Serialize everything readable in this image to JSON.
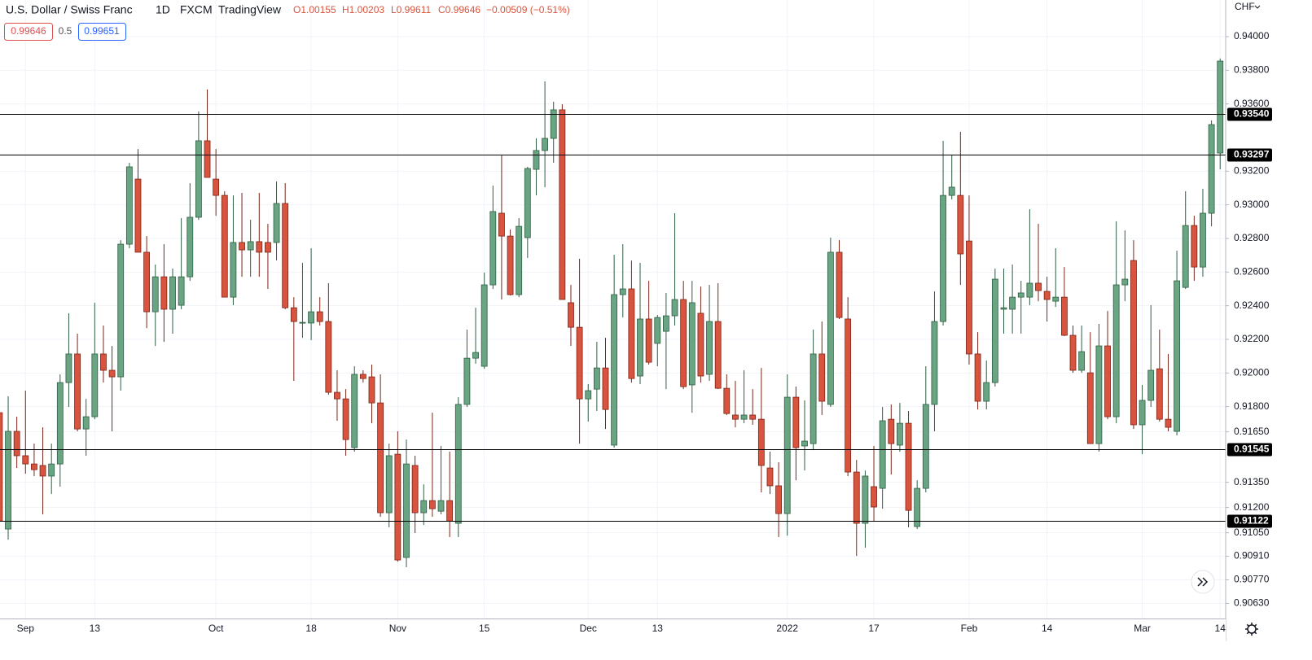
{
  "header": {
    "symbol": "U.S. Dollar / Swiss Franc",
    "interval": "1D",
    "source": "FXCM",
    "platform": "TradingView",
    "ohlc": [
      "O1.00155",
      "H1.00203",
      "L0.99611",
      "C0.99646"
    ],
    "change": "−0.00509 (−0.51%)",
    "bid": "0.99646",
    "spread": "0.5",
    "ask": "0.99651"
  },
  "chart_data": {
    "type": "candlestick",
    "y_label": "CHF",
    "grid": true,
    "up_color": "#6aa583",
    "down_color": "#d9543e",
    "up_border": "#2e5e43",
    "down_border": "#7a2417",
    "ylim": [
      0.9054,
      0.94218
    ],
    "yticks": [
      {
        "value": 0.94,
        "label": "0.94000"
      },
      {
        "value": 0.938,
        "label": "0.93800"
      },
      {
        "value": 0.936,
        "label": "0.93600"
      },
      {
        "value": 0.932,
        "label": "0.93200"
      },
      {
        "value": 0.93,
        "label": "0.93000"
      },
      {
        "value": 0.928,
        "label": "0.92800"
      },
      {
        "value": 0.926,
        "label": "0.92600"
      },
      {
        "value": 0.924,
        "label": "0.92400"
      },
      {
        "value": 0.922,
        "label": "0.92200"
      },
      {
        "value": 0.92,
        "label": "0.92000"
      },
      {
        "value": 0.918,
        "label": "0.91800"
      },
      {
        "value": 0.9165,
        "label": "0.91650"
      },
      {
        "value": 0.9135,
        "label": "0.91350"
      },
      {
        "value": 0.912,
        "label": "0.91200"
      },
      {
        "value": 0.9105,
        "label": "0.91050"
      },
      {
        "value": 0.9091,
        "label": "0.90910"
      },
      {
        "value": 0.9077,
        "label": "0.90770"
      },
      {
        "value": 0.9063,
        "label": "0.90630"
      }
    ],
    "hlines": [
      {
        "value": 0.9354,
        "label": "0.93540"
      },
      {
        "value": 0.93297,
        "label": "0.93297"
      },
      {
        "value": 0.91545,
        "label": "0.91545"
      },
      {
        "value": 0.91122,
        "label": "0.91122"
      }
    ],
    "categories": [
      null,
      null,
      null,
      "Sep",
      null,
      null,
      null,
      null,
      null,
      null,
      null,
      "13",
      null,
      null,
      null,
      null,
      null,
      null,
      null,
      null,
      null,
      null,
      null,
      null,
      null,
      "Oct",
      null,
      null,
      null,
      null,
      null,
      null,
      null,
      null,
      null,
      null,
      "18",
      null,
      null,
      null,
      null,
      null,
      null,
      null,
      null,
      null,
      "Nov",
      null,
      null,
      null,
      null,
      null,
      null,
      null,
      null,
      null,
      "15",
      null,
      null,
      null,
      null,
      null,
      null,
      null,
      null,
      null,
      null,
      null,
      "Dec",
      null,
      null,
      null,
      null,
      null,
      null,
      null,
      "13",
      null,
      null,
      null,
      null,
      null,
      null,
      null,
      null,
      null,
      null,
      null,
      null,
      null,
      null,
      "2022",
      null,
      null,
      null,
      null,
      null,
      null,
      null,
      null,
      null,
      "17",
      null,
      null,
      null,
      null,
      null,
      null,
      null,
      null,
      null,
      null,
      "Feb",
      null,
      null,
      null,
      null,
      null,
      null,
      null,
      null,
      "14",
      null,
      null,
      null,
      null,
      null,
      null,
      null,
      null,
      null,
      null,
      "Mar",
      null,
      null,
      null,
      null,
      null,
      null,
      null,
      null,
      "14"
    ],
    "open": [
      0.91764,
      0.91072,
      0.91653,
      0.91508,
      0.91459,
      0.9145,
      0.91387,
      0.91459,
      0.91943,
      0.92113,
      0.91667,
      0.9174,
      0.92113,
      0.92016,
      0.91977,
      0.92766,
      0.93153,
      0.92718,
      0.92364,
      0.92572,
      0.92379,
      0.92403,
      0.92572,
      0.92926,
      0.93381,
      0.93153,
      0.93056,
      0.92451,
      0.92776,
      0.92732,
      0.92781,
      0.92776,
      0.92776,
      0.93008,
      0.92388,
      0.92297,
      0.92297,
      0.92364,
      0.92306,
      0.91885,
      0.91846,
      0.91556,
      0.91992,
      0.91977,
      0.91822,
      0.91169,
      0.91517,
      0.90903,
      0.9145,
      0.91169,
      0.91241,
      0.91178,
      0.91241,
      0.91106,
      0.91813,
      0.92088,
      0.9204,
      0.92524,
      0.9295,
      0.92814,
      0.92466,
      0.92805,
      0.93211,
      0.93323,
      0.93395,
      0.93565,
      0.92418,
      0.92272,
      0.91846,
      0.91904,
      0.9203,
      0.91571,
      0.92466,
      0.925,
      0.91982,
      0.92321,
      0.92176,
      0.92248,
      0.9234,
      0.92437,
      0.91929,
      0.92355,
      0.91992,
      0.92306,
      0.91909,
      0.9175,
      0.91725,
      0.9175,
      0.91725,
      0.91435,
      0.91329,
      0.91164,
      0.91856,
      0.91566,
      0.9158,
      0.92113,
      0.91813,
      0.92718,
      0.92321,
      0.91411,
      0.91106,
      0.91324,
      0.91314,
      0.91725,
      0.91571,
      0.91701,
      0.91087,
      0.91314,
      0.91813,
      0.92306,
      0.93056,
      0.93056,
      0.92785,
      0.92113,
      0.91832,
      0.91943,
      0.92379,
      0.92379,
      0.92451,
      0.92451,
      0.92534,
      0.92485,
      0.92427,
      0.92451,
      0.92224,
      0.92016,
      0.92001,
      0.9158,
      0.92161,
      0.9174,
      0.92524,
      0.92669,
      0.91692,
      0.91837,
      0.92025,
      0.91725,
      0.91653,
      0.92509,
      0.92877,
      0.9263,
      0.9295,
      0.93308
    ],
    "high": [
      0.91861,
      0.91861,
      0.9174,
      0.91895,
      0.9158,
      0.91677,
      0.9158,
      0.91992,
      0.92355,
      0.92234,
      0.91846,
      0.92418,
      0.92282,
      0.92161,
      0.9279,
      0.9325,
      0.93332,
      0.92814,
      0.92645,
      0.92766,
      0.92621,
      0.92921,
      0.93129,
      0.93555,
      0.93686,
      0.93332,
      0.93081,
      0.93056,
      0.93071,
      0.92911,
      0.93071,
      0.92887,
      0.93139,
      0.93129,
      0.92451,
      0.92655,
      0.92742,
      0.92451,
      0.92534,
      0.92016,
      0.91904,
      0.9204,
      0.92016,
      0.9205,
      0.91992,
      0.9158,
      0.91653,
      0.91604,
      0.91508,
      0.91338,
      0.91764,
      0.91566,
      0.91532,
      0.91856,
      0.92258,
      0.92388,
      0.92597,
      0.93114,
      0.93298,
      0.92853,
      0.92921,
      0.93226,
      0.93395,
      0.93734,
      0.93613,
      0.93598,
      0.92524,
      0.92679,
      0.91934,
      0.92185,
      0.92209,
      0.92703,
      0.92766,
      0.92669,
      0.92655,
      0.92548,
      0.92345,
      0.92476,
      0.9295,
      0.92548,
      0.92548,
      0.92514,
      0.92524,
      0.92534,
      0.91992,
      0.91953,
      0.92016,
      0.91904,
      0.9203,
      0.91532,
      0.91469,
      0.91992,
      0.91919,
      0.91837,
      0.92258,
      0.92306,
      0.92805,
      0.9279,
      0.92451,
      0.91483,
      0.9142,
      0.91566,
      0.91798,
      0.91813,
      0.91822,
      0.91774,
      0.91362,
      0.9204,
      0.92485,
      0.93381,
      0.93298,
      0.93434,
      0.93056,
      0.92243,
      0.92074,
      0.92621,
      0.92621,
      0.92645,
      0.92548,
      0.92974,
      0.92887,
      0.92572,
      0.92742,
      0.9263,
      0.92282,
      0.92282,
      0.92243,
      0.92292,
      0.92369,
      0.92902,
      0.92848,
      0.9279,
      0.91929,
      0.92403,
      0.92258,
      0.92113,
      0.92727,
      0.93081,
      0.92935,
      0.93095,
      0.93502,
      0.9387
    ],
    "low": [
      0.91096,
      0.91009,
      0.91435,
      0.91401,
      0.91387,
      0.91159,
      0.9128,
      0.91324,
      0.91798,
      0.91653,
      0.91508,
      0.91725,
      0.91943,
      0.91653,
      0.91895,
      0.92742,
      0.92718,
      0.92267,
      0.92161,
      0.92185,
      0.92234,
      0.92379,
      0.92548,
      0.92911,
      0.93163,
      0.92935,
      0.92451,
      0.92403,
      0.92572,
      0.92572,
      0.92572,
      0.925,
      0.92669,
      0.92379,
      0.91953,
      0.92209,
      0.92195,
      0.92282,
      0.91871,
      0.91716,
      0.91508,
      0.91532,
      0.91943,
      0.91701,
      0.91145,
      0.91082,
      0.90878,
      0.90845,
      0.91048,
      0.91096,
      0.91145,
      0.91159,
      0.91024,
      0.91024,
      0.91798,
      0.92055,
      0.92025,
      0.925,
      0.92437,
      0.92461,
      0.92451,
      0.92684,
      0.93056,
      0.93105,
      0.9325,
      0.92437,
      0.92161,
      0.9158,
      0.91711,
      0.91774,
      0.91667,
      0.91556,
      0.9233,
      0.91943,
      0.91934,
      0.9205,
      0.9204,
      0.91904,
      0.92282,
      0.91904,
      0.91764,
      0.91943,
      0.91953,
      0.91904,
      0.9175,
      0.91677,
      0.91701,
      0.91692,
      0.9129,
      0.9128,
      0.91024,
      0.91033,
      0.91362,
      0.9142,
      0.91541,
      0.9175,
      0.91798,
      0.92321,
      0.91387,
      0.90912,
      0.90961,
      0.9112,
      0.91193,
      0.91396,
      0.91532,
      0.91082,
      0.91072,
      0.9129,
      0.91653,
      0.92282,
      0.93032,
      0.92524,
      0.9205,
      0.91783,
      0.91783,
      0.91919,
      0.92234,
      0.92234,
      0.92234,
      0.92403,
      0.92427,
      0.92306,
      0.92393,
      0.92219,
      0.92001,
      0.92001,
      0.9158,
      0.91532,
      0.91725,
      0.91701,
      0.92427,
      0.91667,
      0.91517,
      0.91798,
      0.91711,
      0.91653,
      0.91629,
      0.925,
      0.92548,
      0.92572,
      0.92872,
      0.93211
    ],
    "close": [
      0.9112,
      0.91653,
      0.91508,
      0.91459,
      0.91425,
      0.91387,
      0.91459,
      0.91943,
      0.92113,
      0.91667,
      0.9174,
      0.92113,
      0.92016,
      0.91977,
      0.92766,
      0.93226,
      0.92718,
      0.92364,
      0.92572,
      0.92379,
      0.92572,
      0.92572,
      0.92926,
      0.93381,
      0.93163,
      0.93056,
      0.92451,
      0.92776,
      0.92732,
      0.92781,
      0.92718,
      0.92718,
      0.93008,
      0.92388,
      0.92306,
      0.92301,
      0.92364,
      0.92306,
      0.91885,
      0.91846,
      0.91604,
      0.91992,
      0.91967,
      0.91822,
      0.91169,
      0.91508,
      0.90888,
      0.91459,
      0.91169,
      0.91241,
      0.91193,
      0.91241,
      0.9112,
      0.91813,
      0.92088,
      0.92122,
      0.92524,
      0.9296,
      0.92814,
      0.92466,
      0.92872,
      0.93216,
      0.93323,
      0.93395,
      0.93565,
      0.92437,
      0.92272,
      0.91846,
      0.91895,
      0.9203,
      0.91783,
      0.92466,
      0.925,
      0.91967,
      0.92321,
      0.92064,
      0.9233,
      0.9234,
      0.92437,
      0.91919,
      0.92418,
      0.91982,
      0.92306,
      0.91909,
      0.91759,
      0.91725,
      0.9175,
      0.91725,
      0.9145,
      0.91329,
      0.91164,
      0.91856,
      0.91556,
      0.91595,
      0.92113,
      0.91832,
      0.92718,
      0.9233,
      0.91411,
      0.91106,
      0.91387,
      0.91203,
      0.91716,
      0.9158,
      0.91701,
      0.91183,
      0.91314,
      0.91813,
      0.92306,
      0.93056,
      0.93105,
      0.92708,
      0.92113,
      0.91832,
      0.91943,
      0.92558,
      0.92388,
      0.92451,
      0.92476,
      0.92534,
      0.9249,
      0.92437,
      0.92451,
      0.92224,
      0.92016,
      0.92127,
      0.9158,
      0.92161,
      0.9174,
      0.92524,
      0.92558,
      0.91692,
      0.91837,
      0.92016,
      0.91725,
      0.91677,
      0.92548,
      0.92877,
      0.9263,
      0.9295,
      0.93477,
      0.93855
    ]
  }
}
